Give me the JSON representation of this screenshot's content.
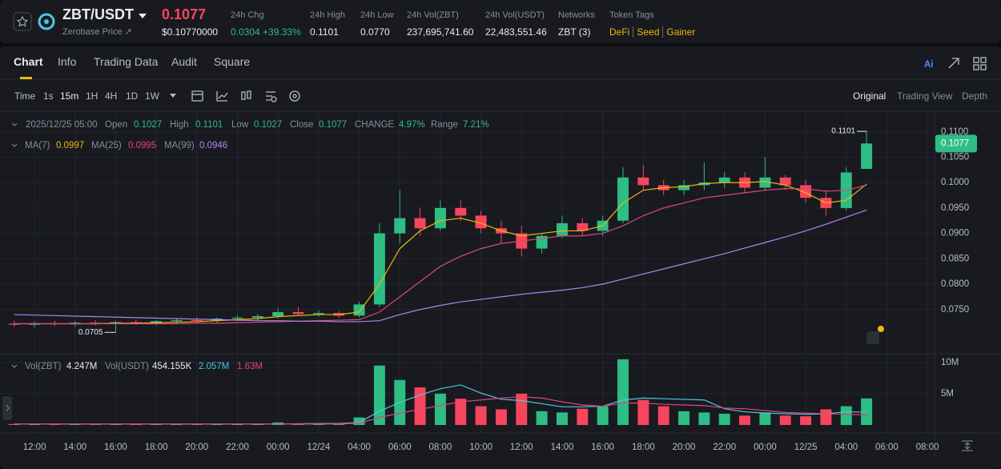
{
  "header": {
    "pair": "ZBT/USDT",
    "subtitle": "Zerobase Price ↗",
    "price": "0.1077",
    "price_usd": "$0.10770000",
    "stats": [
      {
        "label": "24h Chg",
        "value": "0.0304 +39.33%"
      },
      {
        "label": "24h High",
        "value": "0.1101"
      },
      {
        "label": "24h Low",
        "value": "0.0770"
      },
      {
        "label": "24h Vol(ZBT)",
        "value": "237,695,741.60"
      },
      {
        "label": "24h Vol(USDT)",
        "value": "22,483,551.46"
      },
      {
        "label": "Networks",
        "value": "ZBT (3)"
      }
    ],
    "tags_label": "Token Tags",
    "tags": [
      "DeFi",
      "Seed",
      "Gainer"
    ]
  },
  "tabs": [
    "Chart",
    "Info",
    "Trading Data",
    "Audit",
    "Square"
  ],
  "toolbar": {
    "intervals": [
      "Time",
      "1s",
      "15m",
      "1H",
      "4H",
      "1D",
      "1W"
    ],
    "views": [
      "Original",
      "Trading View",
      "Depth"
    ]
  },
  "ohlc_legend": {
    "date": "2025/12/25 05:00",
    "items": [
      {
        "label": "Open",
        "value": "0.1027"
      },
      {
        "label": "High",
        "value": "0.1101"
      },
      {
        "label": "Low",
        "value": "0.1027"
      },
      {
        "label": "Close",
        "value": "0.1077"
      },
      {
        "label": "CHANGE",
        "value": "4.97%"
      },
      {
        "label": "Range",
        "value": "7.21%"
      }
    ]
  },
  "chart_data": {
    "type": "candlestick",
    "up_color": "#2ebd85",
    "down_color": "#f6465d",
    "grid": true,
    "xlim": [
      -1.7,
      44.35
    ],
    "ylim": [
      0.0666,
      0.1139
    ],
    "yticks": [
      {
        "value": 0.075,
        "label": "0.0750"
      },
      {
        "value": 0.08,
        "label": "0.0800"
      },
      {
        "value": 0.085,
        "label": "0.0850"
      },
      {
        "value": 0.09,
        "label": "0.0900"
      },
      {
        "value": 0.095,
        "label": "0.0950"
      },
      {
        "value": 0.1,
        "label": "0.1000"
      },
      {
        "value": 0.105,
        "label": "0.1050"
      },
      {
        "value": 0.11,
        "label": "0.1100"
      }
    ],
    "xticks": [
      {
        "value": 0,
        "label": "12:00"
      },
      {
        "value": 2,
        "label": "14:00"
      },
      {
        "value": 4,
        "label": "16:00"
      },
      {
        "value": 6,
        "label": "18:00"
      },
      {
        "value": 8,
        "label": "20:00"
      },
      {
        "value": 10,
        "label": "22:00"
      },
      {
        "value": 12,
        "label": "00:00"
      },
      {
        "value": 14,
        "label": "12/24"
      },
      {
        "value": 16,
        "label": "04:00"
      },
      {
        "value": 18,
        "label": "06:00"
      },
      {
        "value": 20,
        "label": "08:00"
      },
      {
        "value": 22,
        "label": "10:00"
      },
      {
        "value": 24,
        "label": "12:00"
      },
      {
        "value": 26,
        "label": "14:00"
      },
      {
        "value": 28,
        "label": "16:00"
      },
      {
        "value": 30,
        "label": "18:00"
      },
      {
        "value": 32,
        "label": "20:00"
      },
      {
        "value": 34,
        "label": "22:00"
      },
      {
        "value": 36,
        "label": "00:00"
      },
      {
        "value": 38,
        "label": "12/25"
      },
      {
        "value": 40,
        "label": "04:00"
      },
      {
        "value": 42,
        "label": "06:00"
      },
      {
        "value": 44,
        "label": "08:00"
      }
    ],
    "x": [
      -1,
      0,
      1,
      2,
      3,
      4,
      5,
      6,
      7,
      8,
      9,
      10,
      11,
      12,
      13,
      14,
      15,
      16,
      17,
      18,
      19,
      20,
      21,
      22,
      23,
      24,
      25,
      26,
      27,
      28,
      29,
      30,
      31,
      32,
      33,
      34,
      35,
      36,
      37,
      38,
      39,
      40,
      41
    ],
    "ohlc": [
      [
        0.0722,
        0.0728,
        0.0716,
        0.072
      ],
      [
        0.072,
        0.0726,
        0.0715,
        0.0723
      ],
      [
        0.0723,
        0.0728,
        0.0718,
        0.0721
      ],
      [
        0.0721,
        0.0727,
        0.0716,
        0.0724
      ],
      [
        0.0724,
        0.0729,
        0.0719,
        0.0722
      ],
      [
        0.0722,
        0.0728,
        0.0705,
        0.0725
      ],
      [
        0.0725,
        0.073,
        0.072,
        0.0723
      ],
      [
        0.0723,
        0.0729,
        0.0719,
        0.0727
      ],
      [
        0.0727,
        0.0733,
        0.0722,
        0.0729
      ],
      [
        0.0729,
        0.0735,
        0.0724,
        0.0728
      ],
      [
        0.0728,
        0.0734,
        0.0724,
        0.0732
      ],
      [
        0.0732,
        0.0738,
        0.0727,
        0.0734
      ],
      [
        0.0734,
        0.0741,
        0.0729,
        0.0737
      ],
      [
        0.0737,
        0.0752,
        0.0733,
        0.0745
      ],
      [
        0.0745,
        0.0755,
        0.0738,
        0.0741
      ],
      [
        0.0741,
        0.0748,
        0.0736,
        0.0743
      ],
      [
        0.0743,
        0.0747,
        0.0734,
        0.0738
      ],
      [
        0.0738,
        0.0765,
        0.0735,
        0.076
      ],
      [
        0.076,
        0.092,
        0.0755,
        0.09
      ],
      [
        0.09,
        0.0985,
        0.088,
        0.093
      ],
      [
        0.093,
        0.095,
        0.0895,
        0.091
      ],
      [
        0.091,
        0.0965,
        0.0905,
        0.095
      ],
      [
        0.095,
        0.0965,
        0.0925,
        0.0935
      ],
      [
        0.0935,
        0.0945,
        0.09,
        0.091
      ],
      [
        0.091,
        0.0925,
        0.088,
        0.09
      ],
      [
        0.09,
        0.0915,
        0.0855,
        0.087
      ],
      [
        0.087,
        0.09,
        0.086,
        0.0895
      ],
      [
        0.0895,
        0.0935,
        0.089,
        0.092
      ],
      [
        0.092,
        0.093,
        0.0895,
        0.0905
      ],
      [
        0.0905,
        0.0935,
        0.0895,
        0.0925
      ],
      [
        0.0925,
        0.103,
        0.092,
        0.101
      ],
      [
        0.101,
        0.1035,
        0.0985,
        0.0995
      ],
      [
        0.0995,
        0.1005,
        0.0975,
        0.0985
      ],
      [
        0.0985,
        0.1005,
        0.0975,
        0.0995
      ],
      [
        0.0995,
        0.104,
        0.0985,
        0.1
      ],
      [
        0.1,
        0.102,
        0.099,
        0.101
      ],
      [
        0.101,
        0.102,
        0.098,
        0.099
      ],
      [
        0.099,
        0.105,
        0.0985,
        0.101
      ],
      [
        0.101,
        0.1015,
        0.0985,
        0.0995
      ],
      [
        0.0995,
        0.1005,
        0.096,
        0.097
      ],
      [
        0.097,
        0.0985,
        0.0935,
        0.095
      ],
      [
        0.095,
        0.103,
        0.0945,
        0.102
      ],
      [
        0.1027,
        0.1101,
        0.1027,
        0.1077
      ]
    ],
    "series": [
      {
        "name": "MA(7)",
        "color": "#f0b90b",
        "last_label": "0.0997",
        "values": [
          0.0722,
          0.0722,
          0.0722,
          0.0722,
          0.0722,
          0.0723,
          0.0723,
          0.0724,
          0.0725,
          0.0726,
          0.0728,
          0.073,
          0.0732,
          0.0736,
          0.0738,
          0.074,
          0.074,
          0.0745,
          0.08,
          0.087,
          0.0905,
          0.0925,
          0.093,
          0.092,
          0.0905,
          0.0895,
          0.09,
          0.0905,
          0.0905,
          0.0915,
          0.096,
          0.0985,
          0.099,
          0.0992,
          0.0998,
          0.1,
          0.1,
          0.1002,
          0.0995,
          0.098,
          0.096,
          0.0965,
          0.0997
        ]
      },
      {
        "name": "MA(25)",
        "color": "#e0457b",
        "last_label": "0.0995",
        "values": [
          0.0722,
          0.0722,
          0.0722,
          0.0722,
          0.0722,
          0.0722,
          0.0722,
          0.0722,
          0.0722,
          0.0723,
          0.0723,
          0.0724,
          0.0725,
          0.0726,
          0.0727,
          0.0728,
          0.0729,
          0.073,
          0.0745,
          0.0775,
          0.0805,
          0.0835,
          0.0855,
          0.087,
          0.088,
          0.0885,
          0.089,
          0.0895,
          0.0895,
          0.09,
          0.0915,
          0.0935,
          0.095,
          0.096,
          0.097,
          0.0975,
          0.098,
          0.0985,
          0.0988,
          0.0988,
          0.0983,
          0.0985,
          0.0995
        ]
      },
      {
        "name": "MA(99)",
        "color": "#b084f5",
        "last_label": "0.0946",
        "values": [
          0.074,
          0.0739,
          0.0738,
          0.0737,
          0.0736,
          0.0735,
          0.0734,
          0.0733,
          0.0732,
          0.0731,
          0.073,
          0.0729,
          0.0728,
          0.0728,
          0.0727,
          0.0727,
          0.0726,
          0.0726,
          0.0728,
          0.074,
          0.075,
          0.0758,
          0.0765,
          0.077,
          0.0775,
          0.078,
          0.0784,
          0.0788,
          0.0793,
          0.08,
          0.081,
          0.082,
          0.083,
          0.084,
          0.085,
          0.086,
          0.0871,
          0.0882,
          0.0893,
          0.0905,
          0.0918,
          0.0932,
          0.0946
        ]
      }
    ],
    "annotations": [
      {
        "x": 41,
        "value": 0.1101
      },
      {
        "x": 4,
        "value": 0.0705
      }
    ],
    "last_price": 0.1077,
    "volume": {
      "ylim": [
        0,
        11000000
      ],
      "yticks": [
        {
          "value": 5000000,
          "label": "5M"
        },
        {
          "value": 10000000,
          "label": "10M"
        }
      ],
      "legend": [
        {
          "name": "Vol(ZBT)",
          "value": "4.247M"
        },
        {
          "name": "Vol(USDT)",
          "value": "454.155K"
        }
      ],
      "values": [
        150000,
        120000,
        100000,
        130000,
        110000,
        90000,
        120000,
        100000,
        140000,
        110000,
        130000,
        120000,
        150000,
        400000,
        200000,
        150000,
        180000,
        1200000,
        9500000,
        7200000,
        6000000,
        5000000,
        4200000,
        3000000,
        2500000,
        5000000,
        2200000,
        2000000,
        2600000,
        3000000,
        10500000,
        4000000,
        3000000,
        2200000,
        2000000,
        1800000,
        1500000,
        2000000,
        1500000,
        1400000,
        2500000,
        3000000,
        4247000
      ],
      "series": [
        {
          "color": "#4cc9e0",
          "value_label": "2.057M",
          "values": [
            150000,
            150000,
            150000,
            150000,
            150000,
            150000,
            150000,
            150000,
            150000,
            150000,
            150000,
            150000,
            150000,
            150000,
            200000,
            220000,
            230000,
            410000,
            2200000,
            3600000,
            4800000,
            5800000,
            6400000,
            5100000,
            4100000,
            3900000,
            3400000,
            2900000,
            2900000,
            3000000,
            4000000,
            4300000,
            4200000,
            4100000,
            4000000,
            2600000,
            2100000,
            1900000,
            1800000,
            1700000,
            1800000,
            2100000,
            2057000
          ]
        },
        {
          "color": "#e0457b",
          "value_label": "1.63M",
          "values": [
            150000,
            150000,
            150000,
            150000,
            150000,
            150000,
            150000,
            150000,
            150000,
            150000,
            150000,
            150000,
            150000,
            150000,
            150000,
            150000,
            150000,
            300000,
            1200000,
            1900000,
            2500000,
            3100000,
            3700000,
            4000000,
            4300000,
            4500000,
            4300000,
            3700000,
            3200000,
            3000000,
            3500000,
            3500000,
            3300000,
            3200000,
            3100000,
            2700000,
            2600000,
            2300000,
            2000000,
            1900000,
            1800000,
            1700000,
            1630000
          ]
        }
      ]
    }
  }
}
